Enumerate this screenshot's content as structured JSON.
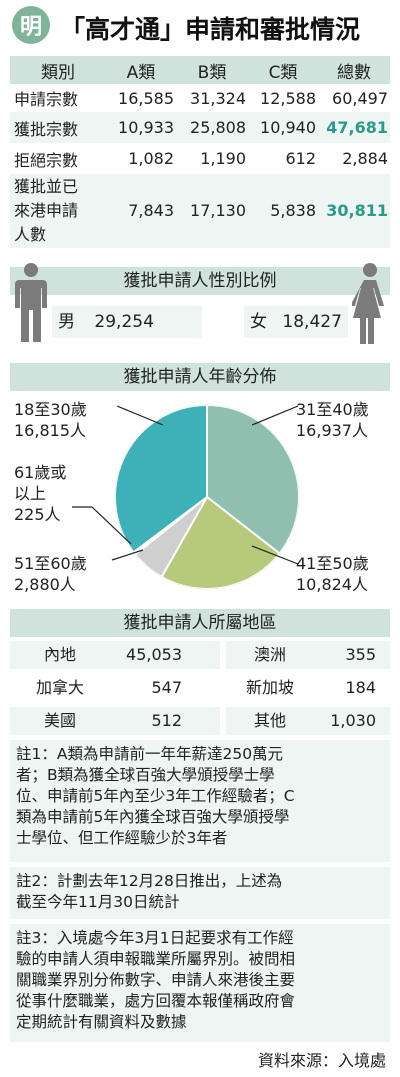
{
  "header": {
    "logo": "明",
    "title": "「高才通」申請和審批情況"
  },
  "main_table": {
    "headers": [
      "類別",
      "A類",
      "B類",
      "C類",
      "總數"
    ],
    "rows": [
      {
        "label": "申請宗數",
        "a": "16,585",
        "b": "31,324",
        "c": "12,588",
        "total": "60,497"
      },
      {
        "label": "獲批宗數",
        "a": "10,933",
        "b": "25,808",
        "c": "10,940",
        "total": "47,681"
      },
      {
        "label": "拒絕宗數",
        "a": "1,082",
        "b": "1,190",
        "c": "612",
        "total": "2,884"
      },
      {
        "label_lines": [
          "獲批並已",
          "來港申請",
          "人數"
        ],
        "a": "7,843",
        "b": "17,130",
        "c": "5,838",
        "total": "30,811"
      }
    ]
  },
  "gender": {
    "title": "獲批申請人性別比例",
    "male_label": "男",
    "male_value": "29,254",
    "female_label": "女",
    "female_value": "18,427"
  },
  "age": {
    "title": "獲批申請人年齡分佈",
    "labels": {
      "s18": {
        "range": "18至30歲",
        "count": "16,815人"
      },
      "s31": {
        "range": "31至40歲",
        "count": "16,937人"
      },
      "s41": {
        "range": "41至50歲",
        "count": "10,824人"
      },
      "s51": {
        "range": "51至60歲",
        "count": "2,880人"
      },
      "s61": {
        "range_l1": "61歲或",
        "range_l2": "以上",
        "count": "225人"
      }
    }
  },
  "chart_data": {
    "type": "pie",
    "categories": [
      "31至40歲",
      "41至50歲",
      "51至60歲",
      "61歲或以上",
      "18至30歲"
    ],
    "values": [
      16937,
      10824,
      2880,
      225,
      16815
    ],
    "colors": [
      "#8fbfae",
      "#b7c97a",
      "#cfcfcf",
      "#ffffff",
      "#3cb2b8"
    ]
  },
  "region": {
    "title": "獲批申請人所屬地區",
    "rows": [
      {
        "l_name": "內地",
        "l_value": "45,053",
        "r_name": "澳洲",
        "r_value": "355"
      },
      {
        "l_name": "加拿大",
        "l_value": "547",
        "r_name": "新加坡",
        "r_value": "184"
      },
      {
        "l_name": "美國",
        "l_value": "512",
        "r_name": "其他",
        "r_value": "1,030"
      }
    ]
  },
  "notes": {
    "n1": [
      "註1：A類為申請前一年年薪達250萬元",
      "者；B類為獲全球百強大學頒授學士學",
      "位、申請前5年內至少3年工作經驗者；C",
      "類為申請前5年內獲全球百強大學頒授學",
      "士學位、但工作經驗少於3年者"
    ],
    "n2": [
      "註2：計劃去年12月28日推出，上述為",
      "截至今年11月30日統計"
    ],
    "n3": [
      "註3：入境處今年3月1日起要求有工作經",
      "驗的申請人須申報職業所屬界別。被問相",
      "關職業界別分佈數字、申請人來港後主要",
      "從事什麼職業，處方回覆本報僅稱政府會",
      "定期統計有關資料及數據"
    ],
    "source": "資料來源：入境處"
  }
}
